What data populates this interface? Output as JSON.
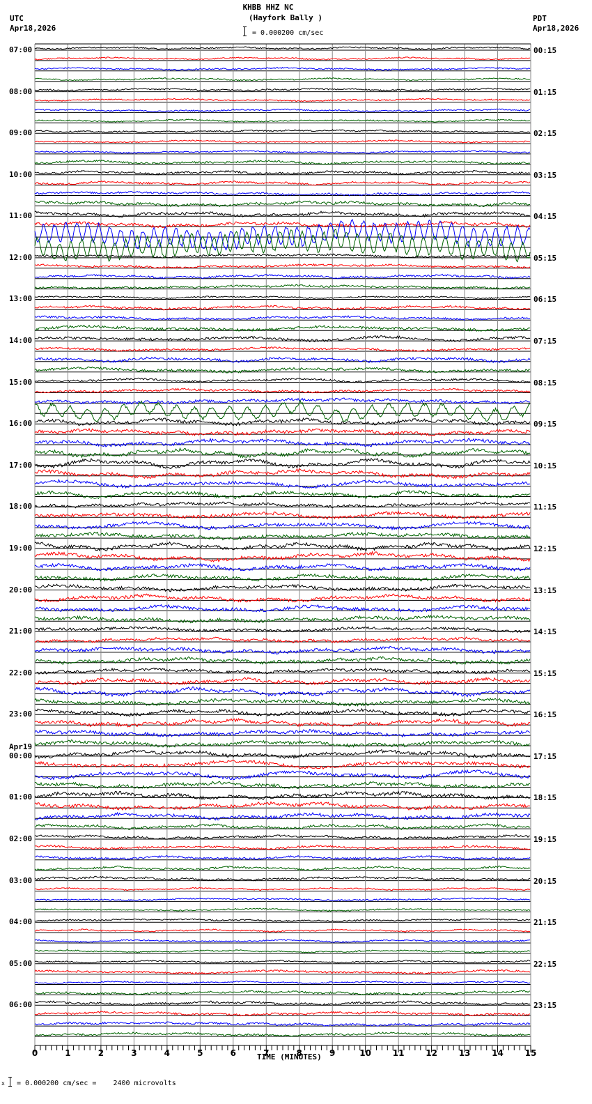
{
  "header": {
    "station": "KHBB HHZ NC",
    "site": "(Hayfork Bally )",
    "scale_label": "= 0.000200 cm/sec",
    "left_tz": "UTC",
    "left_date": "Apr18,2026",
    "right_tz": "PDT",
    "right_date": "Apr18,2026"
  },
  "footer": {
    "scale_note": "= 0.000200 cm/sec =    2400 microvolts",
    "scale_prefix": "x"
  },
  "chart_data": {
    "type": "line",
    "title": "KHBB HHZ NC (Hayfork Bally )",
    "subtitle": "= 0.000200 cm/sec",
    "xlabel": "TIME (MINUTES)",
    "ylabel": "",
    "xlim": [
      0,
      15
    ],
    "x_ticks": [
      "0",
      "1",
      "2",
      "3",
      "4",
      "5",
      "6",
      "7",
      "8",
      "9",
      "10",
      "11",
      "12",
      "13",
      "14",
      "15"
    ],
    "grid": true,
    "traces_per_hour": 4,
    "trace_colors": [
      "#000000",
      "#ff0000",
      "#0000ff",
      "#006400"
    ],
    "left_labels_utc": [
      "07:00",
      "08:00",
      "09:00",
      "10:00",
      "11:00",
      "12:00",
      "13:00",
      "14:00",
      "15:00",
      "16:00",
      "17:00",
      "18:00",
      "19:00",
      "20:00",
      "21:00",
      "22:00",
      "23:00",
      "Apr19|00:00",
      "01:00",
      "02:00",
      "03:00",
      "04:00",
      "05:00",
      "06:00"
    ],
    "right_labels_pdt": [
      "00:15",
      "01:15",
      "02:15",
      "03:15",
      "04:15",
      "05:15",
      "06:15",
      "07:15",
      "08:15",
      "09:15",
      "10:15",
      "11:15",
      "12:15",
      "13:15",
      "14:15",
      "15:15",
      "16:15",
      "17:15",
      "18:15",
      "19:15",
      "20:15",
      "21:15",
      "22:15",
      "23:15"
    ],
    "trace_activity": [
      [
        2,
        2,
        2,
        2
      ],
      [
        2,
        2,
        2,
        2
      ],
      [
        2,
        2,
        2,
        3
      ],
      [
        3,
        3,
        3,
        4
      ],
      [
        4,
        4,
        14,
        14
      ],
      [
        3,
        3,
        3,
        3
      ],
      [
        2,
        3,
        3,
        4
      ],
      [
        4,
        3,
        4,
        4
      ],
      [
        3,
        3,
        4,
        9
      ],
      [
        5,
        5,
        6,
        7
      ],
      [
        8,
        7,
        6,
        6
      ],
      [
        4,
        5,
        6,
        5
      ],
      [
        6,
        7,
        5,
        5
      ],
      [
        5,
        6,
        5,
        5
      ],
      [
        4,
        4,
        5,
        5
      ],
      [
        4,
        5,
        7,
        5
      ],
      [
        5,
        6,
        5,
        5
      ],
      [
        6,
        7,
        7,
        5
      ],
      [
        6,
        6,
        5,
        4
      ],
      [
        3,
        3,
        3,
        3
      ],
      [
        3,
        2,
        2,
        2
      ],
      [
        2,
        2,
        2,
        2
      ],
      [
        2,
        3,
        2,
        3
      ],
      [
        3,
        3,
        3,
        3
      ]
    ],
    "amplitude_unit": "pixels (visual estimate of peak deflection)"
  }
}
